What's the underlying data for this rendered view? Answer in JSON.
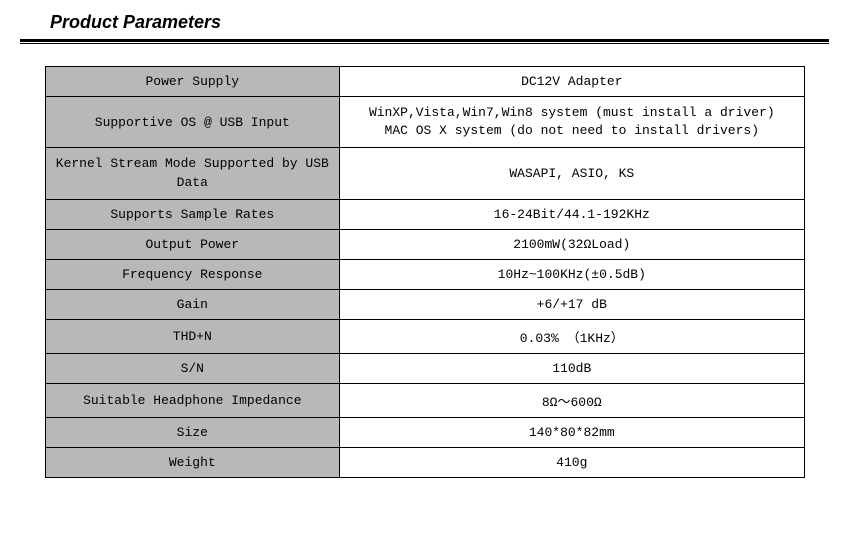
{
  "title": "Product Parameters",
  "table": {
    "label_bg": "#b8b8b8",
    "value_bg": "#ffffff",
    "border_color": "#000000",
    "font_family": "Courier New",
    "font_size": 13,
    "rows": [
      {
        "label": "Power Supply",
        "value": "DC12V Adapter"
      },
      {
        "label": "Supportive OS @ USB Input",
        "value": "WinXP,Vista,Win7,Win8 system (must install a driver)\nMAC OS X system (do not need to install drivers)",
        "multiline": true
      },
      {
        "label": "Kernel Stream Mode Supported by USB\nData",
        "value": "WASAPI, ASIO, KS",
        "label_multiline": true
      },
      {
        "label": "Supports Sample Rates",
        "value": "16-24Bit/44.1-192KHz"
      },
      {
        "label": "Output Power",
        "value": "2100mW(32ΩLoad)"
      },
      {
        "label": "Frequency Response",
        "value": "10Hz~100KHz(±0.5dB)"
      },
      {
        "label": "Gain",
        "value": "+6/+17 dB"
      },
      {
        "label": "THD+N",
        "value": "0.03% （1KHz）"
      },
      {
        "label": "S/N",
        "value": "110dB"
      },
      {
        "label": "Suitable Headphone Impedance",
        "value": "8Ω～600Ω"
      },
      {
        "label": "Size",
        "value": "140*80*82mm"
      },
      {
        "label": "Weight",
        "value": "410g"
      }
    ]
  }
}
